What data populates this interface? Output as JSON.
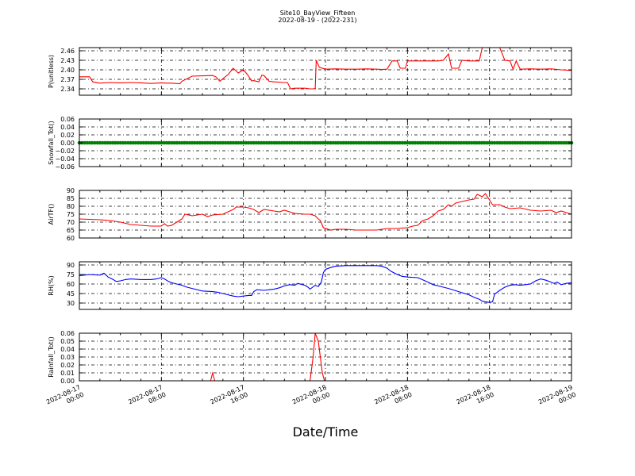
{
  "figure": {
    "title_line1": "Site10_BayView_Fifteen",
    "title_line2": "2022-08-19 - (2022-231)",
    "xlabel": "Date/Time"
  },
  "chart_data": [
    {
      "type": "line",
      "ylabel": "P(unitless)",
      "color": "#ff0000",
      "ylim": [
        2.32,
        2.47
      ],
      "yticks": [
        2.34,
        2.37,
        2.4,
        2.43,
        2.46
      ],
      "ytick_labels": [
        "2.34",
        "2.37",
        "2.40",
        "2.43",
        "2.46"
      ],
      "xlim": [
        0,
        48
      ],
      "grid": true,
      "points": [
        [
          0,
          2.378
        ],
        [
          1,
          2.378
        ],
        [
          1.3,
          2.362
        ],
        [
          2,
          2.358
        ],
        [
          3,
          2.36
        ],
        [
          4,
          2.359
        ],
        [
          5,
          2.36
        ],
        [
          6,
          2.359
        ],
        [
          7,
          2.357
        ],
        [
          8,
          2.359
        ],
        [
          8.5,
          2.358
        ],
        [
          9,
          2.358
        ],
        [
          9.8,
          2.356
        ],
        [
          10,
          2.364
        ],
        [
          11,
          2.38
        ],
        [
          12,
          2.381
        ],
        [
          13,
          2.382
        ],
        [
          13.3,
          2.378
        ],
        [
          13.7,
          2.364
        ],
        [
          14,
          2.372
        ],
        [
          14.5,
          2.385
        ],
        [
          15,
          2.405
        ],
        [
          15.5,
          2.39
        ],
        [
          16,
          2.4
        ],
        [
          16.4,
          2.385
        ],
        [
          16.8,
          2.365
        ],
        [
          17,
          2.366
        ],
        [
          17.5,
          2.362
        ],
        [
          17.8,
          2.383
        ],
        [
          18,
          2.382
        ],
        [
          18.5,
          2.364
        ],
        [
          19,
          2.362
        ],
        [
          20,
          2.36
        ],
        [
          20.3,
          2.36
        ],
        [
          20.6,
          2.34
        ],
        [
          21,
          2.342
        ],
        [
          22,
          2.342
        ],
        [
          22.5,
          2.34
        ],
        [
          22.8,
          2.34
        ],
        [
          23,
          2.341
        ],
        [
          23.1,
          2.43
        ],
        [
          23.4,
          2.408
        ],
        [
          24,
          2.402
        ],
        [
          25,
          2.403
        ],
        [
          26,
          2.402
        ],
        [
          27,
          2.402
        ],
        [
          28,
          2.403
        ],
        [
          29,
          2.402
        ],
        [
          29.5,
          2.401
        ],
        [
          30,
          2.402
        ],
        [
          30.5,
          2.428
        ],
        [
          31,
          2.428
        ],
        [
          31.3,
          2.405
        ],
        [
          31.8,
          2.405
        ],
        [
          32,
          2.428
        ],
        [
          33,
          2.428
        ],
        [
          34,
          2.428
        ],
        [
          35,
          2.428
        ],
        [
          35.5,
          2.43
        ],
        [
          36,
          2.45
        ],
        [
          36.3,
          2.405
        ],
        [
          37,
          2.405
        ],
        [
          37.3,
          2.43
        ],
        [
          38,
          2.428
        ],
        [
          39,
          2.428
        ],
        [
          39.3,
          2.47
        ],
        [
          40,
          2.47
        ],
        [
          41,
          2.47
        ],
        [
          41.5,
          2.43
        ],
        [
          42,
          2.428
        ],
        [
          42.3,
          2.402
        ],
        [
          42.6,
          2.428
        ],
        [
          43,
          2.402
        ],
        [
          44,
          2.403
        ],
        [
          45,
          2.402
        ],
        [
          46,
          2.403
        ],
        [
          47,
          2.4
        ],
        [
          48,
          2.398
        ]
      ]
    },
    {
      "type": "scatter",
      "ylabel": "Snowfall_Tot()",
      "color": "#008000",
      "ylim": [
        -0.06,
        0.06
      ],
      "yticks": [
        -0.06,
        -0.04,
        -0.02,
        0.0,
        0.02,
        0.04,
        0.06
      ],
      "ytick_labels": [
        "−0.06",
        "−0.04",
        "−0.02",
        "0.00",
        "0.02",
        "0.04",
        "0.06"
      ],
      "xlim": [
        0,
        48
      ],
      "grid": true,
      "x_start": 0,
      "x_end": 48,
      "x_step": 0.25,
      "y_value": 0.0
    },
    {
      "type": "line",
      "ylabel": "AirTF()",
      "color": "#ff0000",
      "ylim": [
        60,
        90
      ],
      "yticks": [
        60,
        65,
        70,
        75,
        80,
        85,
        90
      ],
      "ytick_labels": [
        "60",
        "65",
        "70",
        "75",
        "80",
        "85",
        "90"
      ],
      "xlim": [
        0,
        48
      ],
      "grid": true,
      "points": [
        [
          0,
          72
        ],
        [
          2,
          71.5
        ],
        [
          3,
          71
        ],
        [
          4,
          70
        ],
        [
          5,
          68.5
        ],
        [
          6,
          68
        ],
        [
          7,
          67.5
        ],
        [
          8,
          67.5
        ],
        [
          8.3,
          69
        ],
        [
          8.6,
          67.5
        ],
        [
          9,
          68
        ],
        [
          9.5,
          70
        ],
        [
          10,
          72
        ],
        [
          10.3,
          75
        ],
        [
          11,
          74
        ],
        [
          12,
          75
        ],
        [
          12.5,
          73.5
        ],
        [
          13,
          74.5
        ],
        [
          14,
          75
        ],
        [
          15,
          78
        ],
        [
          15.3,
          79.5
        ],
        [
          16,
          79.5
        ],
        [
          16.5,
          79
        ],
        [
          17,
          78
        ],
        [
          17.5,
          76
        ],
        [
          18,
          78
        ],
        [
          19,
          77
        ],
        [
          19.5,
          76.5
        ],
        [
          20,
          77.5
        ],
        [
          21,
          75.5
        ],
        [
          22,
          75
        ],
        [
          22.5,
          75
        ],
        [
          23,
          74
        ],
        [
          23.3,
          72
        ],
        [
          23.5,
          71
        ],
        [
          23.8,
          66.5
        ],
        [
          24.5,
          65
        ],
        [
          25,
          65.5
        ],
        [
          26,
          65.5
        ],
        [
          27,
          65
        ],
        [
          28,
          65
        ],
        [
          29,
          65
        ],
        [
          30,
          66
        ],
        [
          31,
          66
        ],
        [
          32,
          66.5
        ],
        [
          32.5,
          67.5
        ],
        [
          33,
          68
        ],
        [
          33.5,
          71
        ],
        [
          34,
          72
        ],
        [
          34.5,
          74
        ],
        [
          35,
          77
        ],
        [
          35.5,
          78
        ],
        [
          36,
          81
        ],
        [
          36.3,
          80
        ],
        [
          36.7,
          82
        ],
        [
          37,
          82.5
        ],
        [
          38,
          84
        ],
        [
          38.5,
          84.5
        ],
        [
          38.8,
          87.5
        ],
        [
          39.3,
          86
        ],
        [
          39.6,
          88
        ],
        [
          40,
          84
        ],
        [
          40.3,
          81
        ],
        [
          41,
          81
        ],
        [
          41.5,
          79.5
        ],
        [
          42,
          78.5
        ],
        [
          43,
          79
        ],
        [
          44,
          77.5
        ],
        [
          45,
          77
        ],
        [
          46,
          77.5
        ],
        [
          46.5,
          76
        ],
        [
          47,
          77
        ],
        [
          48,
          75
        ]
      ]
    },
    {
      "type": "line",
      "ylabel": "RH(%)",
      "color": "#0000ff",
      "ylim": [
        20,
        95
      ],
      "yticks": [
        30,
        45,
        60,
        75,
        90
      ],
      "ytick_labels": [
        "30",
        "45",
        "60",
        "75",
        "90"
      ],
      "xlim": [
        0,
        48
      ],
      "grid": true,
      "points": [
        [
          0,
          73
        ],
        [
          1,
          75
        ],
        [
          2,
          74
        ],
        [
          2.4,
          77
        ],
        [
          2.8,
          71
        ],
        [
          3.3,
          67
        ],
        [
          3.6,
          64
        ],
        [
          4,
          65
        ],
        [
          4.5,
          67
        ],
        [
          5,
          68
        ],
        [
          6,
          67
        ],
        [
          7,
          67
        ],
        [
          7.5,
          68
        ],
        [
          8,
          70
        ],
        [
          8.3,
          68
        ],
        [
          8.7,
          64
        ],
        [
          9,
          62
        ],
        [
          9.5,
          60
        ],
        [
          10,
          58
        ],
        [
          10.5,
          55
        ],
        [
          11,
          53
        ],
        [
          12,
          49
        ],
        [
          13,
          48
        ],
        [
          13.5,
          47
        ],
        [
          14,
          45
        ],
        [
          14.5,
          43
        ],
        [
          15,
          41
        ],
        [
          15.5,
          40
        ],
        [
          16,
          41
        ],
        [
          16.5,
          42
        ],
        [
          16.8,
          42
        ],
        [
          17,
          48
        ],
        [
          17.3,
          51
        ],
        [
          18,
          50
        ],
        [
          18.5,
          51
        ],
        [
          19,
          52
        ],
        [
          19.5,
          54
        ],
        [
          20,
          57
        ],
        [
          20.5,
          59
        ],
        [
          21,
          58
        ],
        [
          21.3,
          61
        ],
        [
          22,
          58
        ],
        [
          22.3,
          55
        ],
        [
          22.5,
          52
        ],
        [
          23,
          58
        ],
        [
          23.3,
          56
        ],
        [
          23.6,
          63
        ],
        [
          23.8,
          78
        ],
        [
          24,
          83
        ],
        [
          24.5,
          86
        ],
        [
          25,
          88
        ],
        [
          26,
          89
        ],
        [
          27,
          89
        ],
        [
          28,
          89
        ],
        [
          29,
          89
        ],
        [
          29.5,
          88
        ],
        [
          30,
          85
        ],
        [
          30.4,
          80
        ],
        [
          31,
          75
        ],
        [
          31.5,
          72
        ],
        [
          32,
          71
        ],
        [
          33,
          70
        ],
        [
          33.3,
          68
        ],
        [
          34,
          63
        ],
        [
          34.5,
          59
        ],
        [
          35,
          57
        ],
        [
          35.5,
          55
        ],
        [
          36,
          53
        ],
        [
          37,
          48
        ],
        [
          38,
          43
        ],
        [
          38.5,
          39
        ],
        [
          39,
          36
        ],
        [
          39.3,
          33
        ],
        [
          39.6,
          32
        ],
        [
          40,
          31
        ],
        [
          40.3,
          32
        ],
        [
          40.5,
          44
        ],
        [
          41,
          50
        ],
        [
          41.5,
          55
        ],
        [
          42,
          58
        ],
        [
          42.5,
          59
        ],
        [
          43,
          58
        ],
        [
          43.5,
          59
        ],
        [
          44,
          60
        ],
        [
          44.5,
          65
        ],
        [
          45,
          68
        ],
        [
          45.5,
          66
        ],
        [
          46,
          63
        ],
        [
          46.3,
          61
        ],
        [
          46.6,
          63
        ],
        [
          47,
          59
        ],
        [
          47.5,
          61
        ],
        [
          48,
          62
        ]
      ]
    },
    {
      "type": "line",
      "ylabel": "Rainfall_Tot()",
      "color": "#ff0000",
      "ylim": [
        0,
        0.06
      ],
      "yticks": [
        0.0,
        0.01,
        0.02,
        0.03,
        0.04,
        0.05,
        0.06
      ],
      "ytick_labels": [
        "0.00",
        "0.01",
        "0.02",
        "0.03",
        "0.04",
        "0.05",
        "0.06"
      ],
      "xlim": [
        0,
        48
      ],
      "grid": true,
      "points": [
        [
          0,
          0
        ],
        [
          12.8,
          0
        ],
        [
          13,
          0.01
        ],
        [
          13.2,
          0
        ],
        [
          22.5,
          0
        ],
        [
          22.8,
          0.03
        ],
        [
          23,
          0.06
        ],
        [
          23.3,
          0.05
        ],
        [
          23.7,
          0.01
        ],
        [
          23.9,
          0
        ],
        [
          48,
          0
        ]
      ]
    }
  ],
  "x_axis": {
    "tick_labels": [
      [
        "2022-08-17",
        "00:00"
      ],
      [
        "2022-08-17",
        "08:00"
      ],
      [
        "2022-08-17",
        "16:00"
      ],
      [
        "2022-08-18",
        "00:00"
      ],
      [
        "2022-08-18",
        "08:00"
      ],
      [
        "2022-08-18",
        "16:00"
      ],
      [
        "2022-08-19",
        "00:00"
      ]
    ],
    "ticks_hours": [
      0,
      8,
      16,
      24,
      32,
      40,
      48
    ]
  }
}
